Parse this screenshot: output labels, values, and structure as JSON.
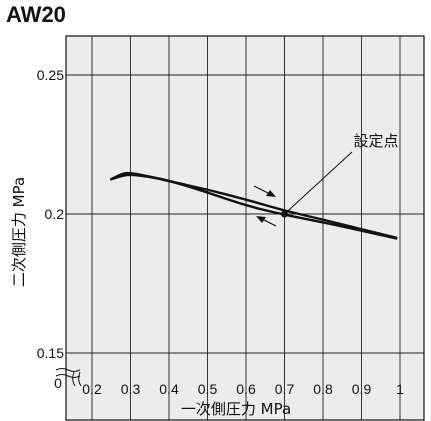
{
  "chart_data": {
    "type": "line",
    "title": "AW20",
    "xlabel": "一次側圧力 MPa",
    "ylabel": "二次側圧力 MPa",
    "xlim": [
      0.2,
      1.0
    ],
    "ylim": [
      0.15,
      0.25
    ],
    "x_ticks": [
      "0.2",
      "0.3",
      "0.4",
      "0.5",
      "0.6",
      "0.7",
      "0.8",
      "0.9",
      "1"
    ],
    "x_tick_values": [
      0.2,
      0.3,
      0.4,
      0.5,
      0.6,
      0.7,
      0.8,
      0.9,
      1.0
    ],
    "y_ticks": [
      "0.15",
      "0.2",
      "0.25"
    ],
    "y_tick_values": [
      0.15,
      0.2,
      0.25
    ],
    "origin_label": "0",
    "grid": true,
    "series": [
      {
        "values": [
          [
            0.25,
            0.2125
          ],
          [
            0.28,
            0.2146
          ],
          [
            0.3,
            0.2148
          ],
          [
            0.35,
            0.2135
          ],
          [
            0.4,
            0.2118
          ],
          [
            0.5,
            0.2088
          ],
          [
            0.6,
            0.2052
          ],
          [
            0.7,
            0.2012
          ],
          [
            0.8,
            0.198
          ],
          [
            0.9,
            0.1945
          ],
          [
            0.99,
            0.1915
          ]
        ]
      },
      {
        "values": [
          [
            0.25,
            0.2125
          ],
          [
            0.28,
            0.2138
          ],
          [
            0.3,
            0.2142
          ],
          [
            0.35,
            0.2134
          ],
          [
            0.4,
            0.212
          ],
          [
            0.5,
            0.2078
          ],
          [
            0.6,
            0.203
          ],
          [
            0.7,
            0.1997
          ],
          [
            0.8,
            0.197
          ],
          [
            0.9,
            0.194
          ],
          [
            0.99,
            0.1912
          ]
        ]
      }
    ],
    "set_point": {
      "x": 0.7,
      "y": 0.2,
      "label": "設定点"
    }
  }
}
